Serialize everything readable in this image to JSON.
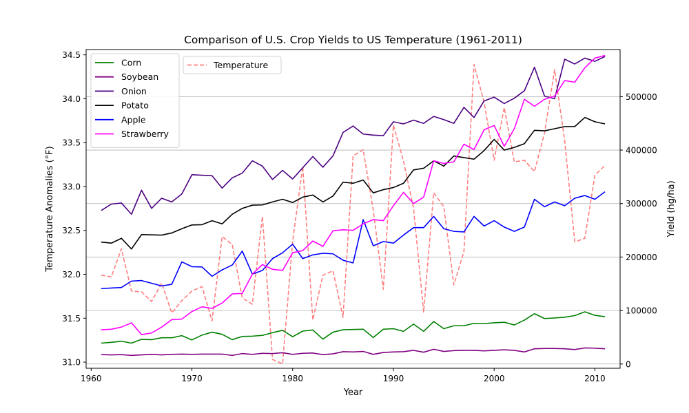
{
  "chart_data": {
    "type": "line",
    "title": "Comparison of U.S. Crop Yields to US Temperature (1961-2011)",
    "xlabel": "Year",
    "ylabel_left": "Temperature Anomalies (°F)",
    "ylabel_right": "Yield (hg/ha)",
    "x_start": 1961,
    "x_end": 2011,
    "xlim": [
      1959.5,
      2012.5
    ],
    "xticks": [
      1960,
      1970,
      1980,
      1990,
      2000,
      2010
    ],
    "ylim_left": [
      30.93,
      34.56
    ],
    "yticks_left": [
      31.0,
      31.5,
      32.0,
      32.5,
      33.0,
      33.5,
      34.0,
      34.5
    ],
    "yticks_left_labels": [
      "31.0",
      "31.5",
      "32.0",
      "32.5",
      "33.0",
      "33.5",
      "34.0",
      "34.5"
    ],
    "ylim_right": [
      -8000,
      588000
    ],
    "yticks_right": [
      0,
      100000,
      200000,
      300000,
      400000,
      500000
    ],
    "yticks_right_labels": [
      "0",
      "100000",
      "200000",
      "300000",
      "400000",
      "500000"
    ],
    "grid": "horizontal lines at right-axis ticks",
    "legend_left_placement": "top-left",
    "legend_right_placement": "top-left, beside first legend",
    "series": [
      {
        "name": "Corn",
        "axis": "right",
        "color": "#008000",
        "style": "solid",
        "values": [
          39000,
          40500,
          42500,
          39000,
          46000,
          45500,
          49000,
          49000,
          53000,
          45000,
          54000,
          59500,
          55500,
          45500,
          51500,
          52000,
          53500,
          58500,
          63000,
          51000,
          61500,
          63500,
          46500,
          59500,
          64000,
          64500,
          65000,
          49500,
          65000,
          66000,
          61000,
          74500,
          61000,
          79500,
          66000,
          71500,
          71500,
          76000,
          75500,
          77000,
          78000,
          73000,
          82000,
          94000,
          85000,
          86000,
          87500,
          90500,
          97500,
          91000,
          88500
        ]
      },
      {
        "name": "Soybean",
        "axis": "right",
        "color": "#800080",
        "style": "solid",
        "values": [
          17500,
          17000,
          17500,
          16000,
          17000,
          18000,
          17000,
          18000,
          18500,
          18000,
          18500,
          18500,
          18500,
          16000,
          19500,
          18000,
          20000,
          19500,
          21000,
          18000,
          20000,
          20500,
          17500,
          19000,
          23000,
          22500,
          23500,
          18000,
          21500,
          22500,
          23000,
          25500,
          22000,
          27500,
          23500,
          25000,
          25500,
          25500,
          24500,
          25500,
          26500,
          25500,
          22500,
          28500,
          29000,
          29000,
          28500,
          27000,
          30000,
          29500,
          28500
        ]
      },
      {
        "name": "Onion",
        "axis": "right",
        "color": "#4b0082",
        "style": "solid",
        "values": [
          287000,
          299000,
          301000,
          280000,
          325000,
          291000,
          310000,
          303000,
          318000,
          354000,
          353000,
          352000,
          329000,
          348000,
          357000,
          380000,
          370000,
          345000,
          362000,
          346000,
          367000,
          388000,
          368000,
          389000,
          433000,
          445000,
          430000,
          428000,
          427000,
          453000,
          449000,
          456000,
          450000,
          463000,
          457000,
          450000,
          480000,
          461000,
          492000,
          499000,
          487000,
          497000,
          511000,
          555000,
          501000,
          496000,
          570000,
          561000,
          572000,
          566000,
          575000
        ]
      },
      {
        "name": "Potato",
        "axis": "right",
        "color": "#000000",
        "style": "solid",
        "values": [
          228000,
          226000,
          235000,
          215000,
          242000,
          241500,
          241000,
          245000,
          253000,
          260000,
          260500,
          268000,
          262000,
          280000,
          291000,
          297000,
          297500,
          303000,
          308000,
          302000,
          312000,
          316000,
          303000,
          314000,
          340000,
          338000,
          344000,
          320000,
          326000,
          330000,
          338000,
          363000,
          366000,
          380000,
          370000,
          389000,
          386000,
          383000,
          399000,
          420000,
          400000,
          405000,
          412000,
          437000,
          436000,
          440000,
          444000,
          444000,
          461000,
          453000,
          449000
        ]
      },
      {
        "name": "Apple",
        "axis": "right",
        "color": "#0000ff",
        "style": "solid",
        "values": [
          141000,
          142000,
          143000,
          155000,
          156000,
          151000,
          146000,
          149000,
          191000,
          182000,
          181500,
          164000,
          176000,
          185000,
          211000,
          168000,
          175000,
          197000,
          208000,
          224000,
          197000,
          204000,
          207000,
          206000,
          194000,
          189000,
          270000,
          221000,
          229000,
          226000,
          241000,
          255000,
          255000,
          276000,
          253000,
          248000,
          247000,
          276000,
          258000,
          268000,
          256000,
          248000,
          256000,
          308000,
          294000,
          303000,
          296000,
          310000,
          315000,
          308000,
          322000
        ]
      },
      {
        "name": "Strawberry",
        "axis": "right",
        "color": "#ff00ff",
        "style": "solid",
        "values": [
          64000,
          65000,
          69000,
          77000,
          55000,
          58000,
          69000,
          83000,
          84000,
          98000,
          107000,
          104000,
          114000,
          131000,
          132000,
          168000,
          186000,
          177000,
          175000,
          208000,
          212000,
          230000,
          220000,
          249000,
          251000,
          250000,
          262000,
          270000,
          268000,
          296000,
          321000,
          300000,
          312000,
          380000,
          375000,
          378000,
          411000,
          401000,
          438000,
          446000,
          407000,
          440000,
          495000,
          482000,
          495000,
          501000,
          530000,
          527000,
          554000,
          572000,
          577000
        ]
      },
      {
        "name": "Temperature",
        "axis": "left",
        "color": "#ff7f7f",
        "style": "dashed",
        "values": [
          31.99,
          31.97,
          32.29,
          31.81,
          31.8,
          31.69,
          31.9,
          31.56,
          31.7,
          31.81,
          31.86,
          31.47,
          32.43,
          32.34,
          31.73,
          31.66,
          32.66,
          31.03,
          30.98,
          32.38,
          33.23,
          31.48,
          31.99,
          32.04,
          31.51,
          33.35,
          33.42,
          32.73,
          31.83,
          33.7,
          33.29,
          32.75,
          31.57,
          32.93,
          32.77,
          31.88,
          32.26,
          34.39,
          33.96,
          33.3,
          33.9,
          33.28,
          33.3,
          33.17,
          33.61,
          34.33,
          33.52,
          32.37,
          32.41,
          33.13,
          33.24
        ]
      }
    ]
  }
}
